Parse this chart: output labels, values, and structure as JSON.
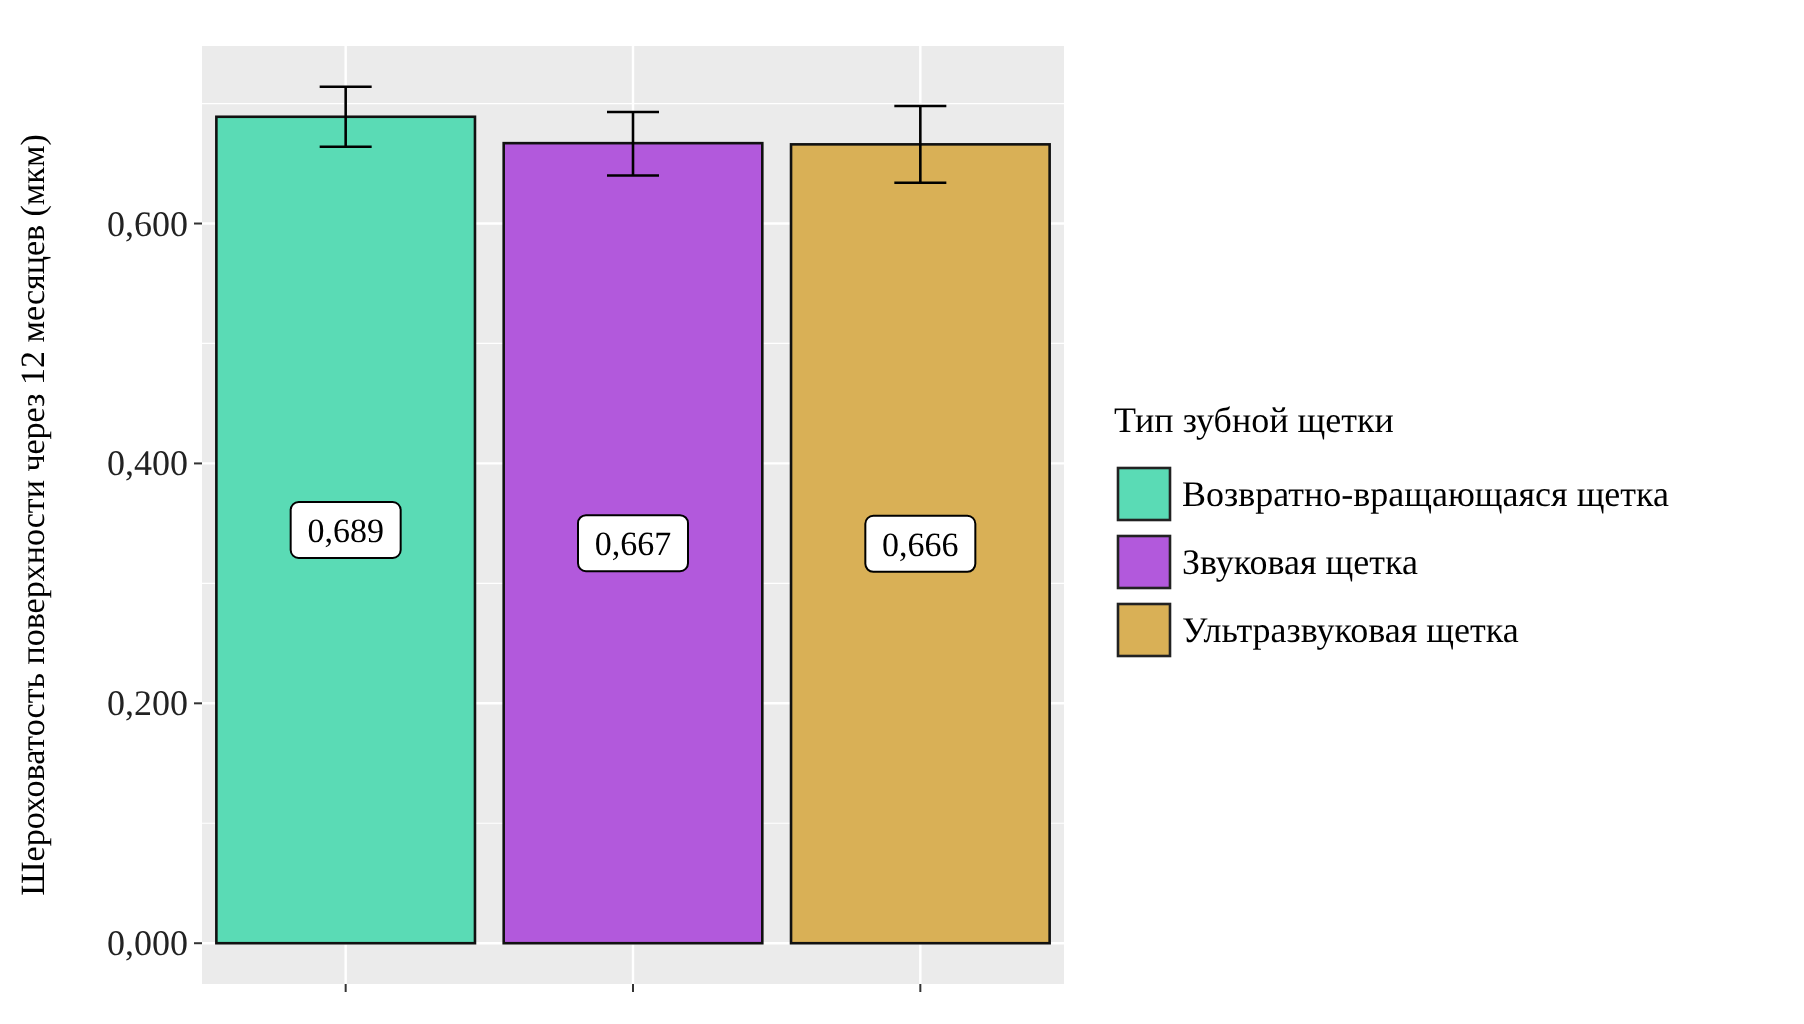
{
  "chart_data": {
    "type": "bar",
    "ylabel": "Шероховатость поверхности через 12 месяцев (мкм)",
    "legend_title": "Тип зубной щетки",
    "categories": [
      null,
      null,
      null
    ],
    "series": [
      {
        "name": "Возвратно-вращающаяся щетка",
        "color": "#5adbb5",
        "values": [
          0.689,
          null,
          null
        ],
        "errors": [
          [
            0.664,
            0.714
          ],
          null,
          null
        ],
        "value_labels": [
          "0,689",
          null,
          null
        ]
      },
      {
        "name": "Звуковая щетка",
        "color": "#b259dc",
        "values": [
          null,
          0.667,
          null
        ],
        "errors": [
          null,
          [
            0.64,
            0.693
          ],
          null
        ],
        "value_labels": [
          null,
          "0,667",
          null
        ]
      },
      {
        "name": "Ультразвуковая щетка",
        "color": "#d9b056",
        "values": [
          null,
          null,
          0.666
        ],
        "errors": [
          null,
          null,
          [
            0.634,
            0.698
          ]
        ],
        "value_labels": [
          null,
          null,
          "0,666"
        ]
      }
    ],
    "ylim": [
      -0.034,
      0.748
    ],
    "yticks": [
      {
        "value": 0,
        "label": "0,000"
      },
      {
        "value": 0.2,
        "label": "0,200"
      },
      {
        "value": 0.4,
        "label": "0,400"
      },
      {
        "value": 0.6,
        "label": "0,600"
      }
    ],
    "grid": true,
    "legend": "right"
  }
}
